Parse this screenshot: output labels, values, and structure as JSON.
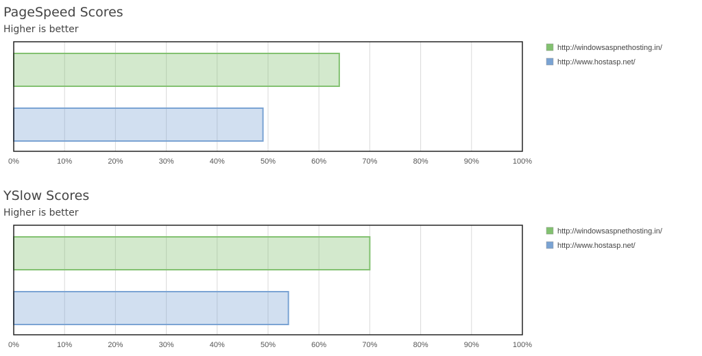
{
  "chart_data": [
    {
      "type": "hbar",
      "title": "PageSpeed Scores",
      "subtitle": "Higher is better",
      "series": [
        {
          "name": "http://windowsaspnethosting.in/",
          "color": "#82c170",
          "values": [
            64
          ]
        },
        {
          "name": "http://www.hostasp.net/",
          "color": "#7aa3d3",
          "values": [
            49
          ]
        }
      ],
      "xlim": [
        0,
        100
      ],
      "xticks": [
        {
          "value": 0,
          "label": "0%"
        },
        {
          "value": 10,
          "label": "10%"
        },
        {
          "value": 20,
          "label": "20%"
        },
        {
          "value": 30,
          "label": "30%"
        },
        {
          "value": 40,
          "label": "40%"
        },
        {
          "value": 50,
          "label": "50%"
        },
        {
          "value": 60,
          "label": "60%"
        },
        {
          "value": 70,
          "label": "70%"
        },
        {
          "value": 80,
          "label": "80%"
        },
        {
          "value": 90,
          "label": "90%"
        },
        {
          "value": 100,
          "label": "100%"
        }
      ],
      "grid": true,
      "legend": "right"
    },
    {
      "type": "hbar",
      "title": "YSlow Scores",
      "subtitle": "Higher is better",
      "series": [
        {
          "name": "http://windowsaspnethosting.in/",
          "color": "#82c170",
          "values": [
            70
          ]
        },
        {
          "name": "http://www.hostasp.net/",
          "color": "#7aa3d3",
          "values": [
            54
          ]
        }
      ],
      "xlim": [
        0,
        100
      ],
      "xticks": [
        {
          "value": 0,
          "label": "0%"
        },
        {
          "value": 10,
          "label": "10%"
        },
        {
          "value": 20,
          "label": "20%"
        },
        {
          "value": 30,
          "label": "30%"
        },
        {
          "value": 40,
          "label": "40%"
        },
        {
          "value": 50,
          "label": "50%"
        },
        {
          "value": 60,
          "label": "60%"
        },
        {
          "value": 70,
          "label": "70%"
        },
        {
          "value": 80,
          "label": "80%"
        },
        {
          "value": 90,
          "label": "90%"
        },
        {
          "value": 100,
          "label": "100%"
        }
      ],
      "grid": true,
      "legend": "right"
    }
  ]
}
